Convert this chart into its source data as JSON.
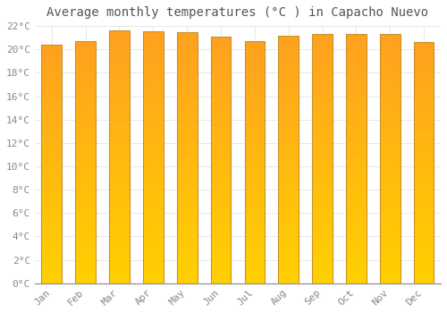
{
  "title": "Average monthly temperatures (°C ) in Capacho Nuevo",
  "months": [
    "Jan",
    "Feb",
    "Mar",
    "Apr",
    "May",
    "Jun",
    "Jul",
    "Aug",
    "Sep",
    "Oct",
    "Nov",
    "Dec"
  ],
  "temperatures": [
    20.4,
    20.7,
    21.6,
    21.55,
    21.5,
    21.1,
    20.7,
    21.2,
    21.3,
    21.35,
    21.3,
    20.6
  ],
  "ylim": [
    0,
    22
  ],
  "yticks": [
    0,
    2,
    4,
    6,
    8,
    10,
    12,
    14,
    16,
    18,
    20,
    22
  ],
  "ytick_labels": [
    "0°C",
    "2°C",
    "4°C",
    "6°C",
    "8°C",
    "10°C",
    "12°C",
    "14°C",
    "16°C",
    "18°C",
    "20°C",
    "22°C"
  ],
  "background_color": "#FFFFFF",
  "grid_color": "#E8E8E8",
  "bar_color_bottom": "#FFD000",
  "bar_color_top": "#FFA020",
  "bar_edge_color": "#C8922A",
  "title_fontsize": 10,
  "tick_fontsize": 8,
  "bar_width": 0.6
}
